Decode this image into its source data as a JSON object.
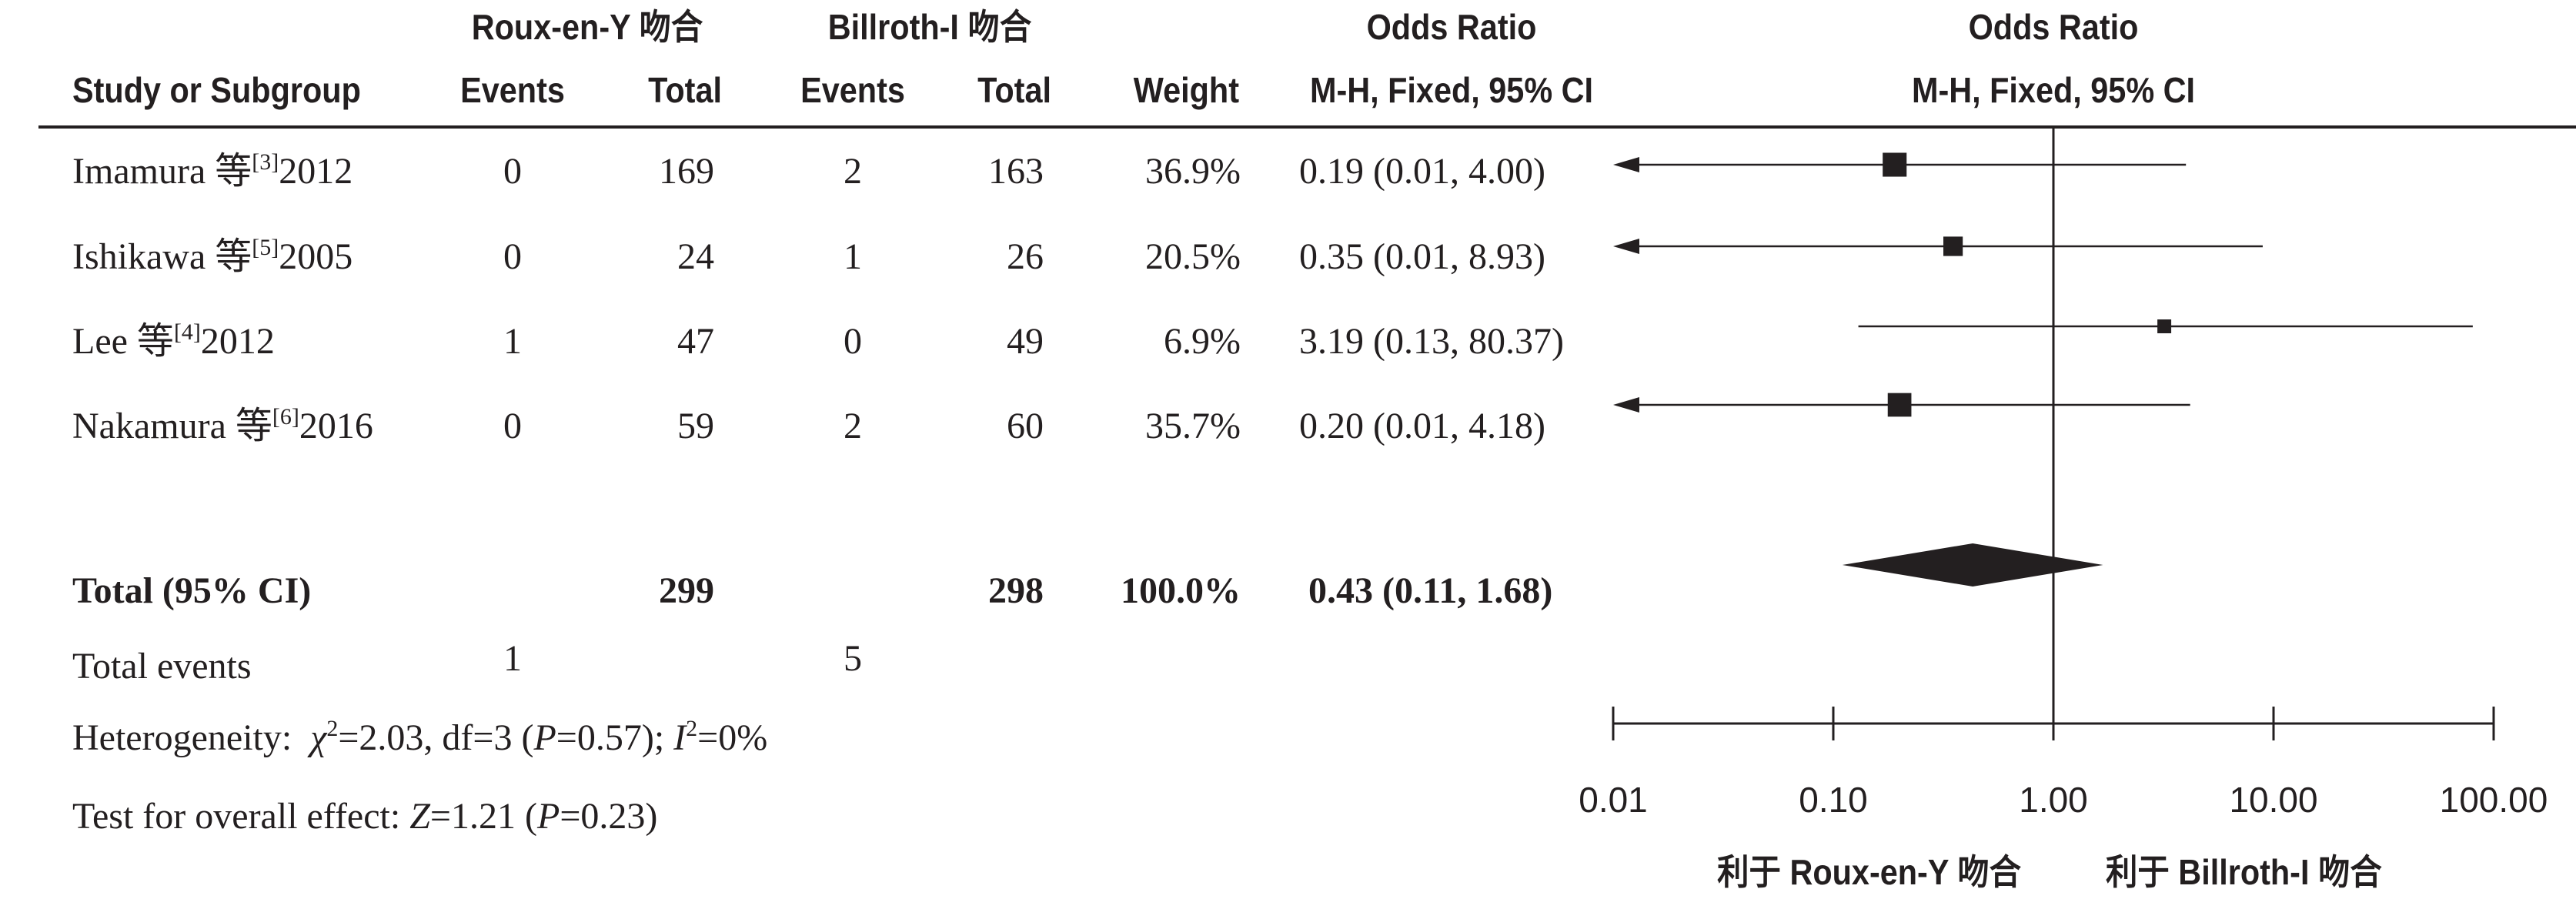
{
  "header": {
    "group1": "Roux-en-Y 吻合",
    "group2": "Billroth-I 吻合",
    "or_title": "Odds Ratio",
    "or_method": "M-H, Fixed, 95% CI",
    "plot_title": "Odds Ratio",
    "plot_method": "M-H, Fixed, 95% CI",
    "study": "Study or Subgroup",
    "events1": "Events",
    "total1": "Total",
    "events2": "Events",
    "total2": "Total",
    "weight": "Weight"
  },
  "rows": [
    {
      "name": "Imamura 等",
      "ref": "[3]",
      "year": "2012",
      "e1": "0",
      "t1": "169",
      "e2": "2",
      "t2": "163",
      "weight": "36.9%",
      "ci_text": "0.19 (0.01, 4.00)"
    },
    {
      "name": "Ishikawa 等",
      "ref": "[5]",
      "year": "2005",
      "e1": "0",
      "t1": "24",
      "e2": "1",
      "t2": "26",
      "weight": "20.5%",
      "ci_text": "0.35 (0.01, 8.93)"
    },
    {
      "name": "Lee 等",
      "ref": "[4]",
      "year": "2012",
      "e1": "1",
      "t1": "47",
      "e2": "0",
      "t2": "49",
      "weight": "6.9%",
      "ci_text": "3.19 (0.13, 80.37)"
    },
    {
      "name": "Nakamura 等",
      "ref": "[6]",
      "year": "2016",
      "e1": "0",
      "t1": "59",
      "e2": "2",
      "t2": "60",
      "weight": "35.7%",
      "ci_text": "0.20 (0.01, 4.18)"
    }
  ],
  "total": {
    "label": "Total (95% CI)",
    "t1": "299",
    "t2": "298",
    "weight": "100.0%",
    "ci_text": "0.43 (0.11, 1.68)"
  },
  "total_events": {
    "label": "Total events",
    "e1": "1",
    "e2": "5"
  },
  "heterogeneity": {
    "label": "Heterogeneity:",
    "chi": "χ",
    "chi_sup": "2",
    "chi_rest": "=2.03, df=3 (",
    "p": "P",
    "p_rest": "=0.57); ",
    "i": "I",
    "i_sup": "2",
    "i_rest": "=0%"
  },
  "overall": {
    "label": "Test for overall effect: ",
    "z": "Z",
    "z_rest": "=1.21 (",
    "p": "P",
    "p_rest": "=0.23)"
  },
  "axis": {
    "favours_left": "利于 Roux-en-Y 吻合",
    "favours_right": "利于 Billroth-I 吻合"
  },
  "chart_data": {
    "type": "scatter",
    "scale": "log",
    "xlim": [
      0.01,
      100
    ],
    "ticks": [
      "0.01",
      "0.10",
      "1.00",
      "10.00",
      "100.00"
    ],
    "tick_values": [
      0.01,
      0.1,
      1,
      10,
      100
    ],
    "reference_line": 1,
    "studies": [
      {
        "name": "Imamura 2012",
        "or": 0.19,
        "lower": 0.01,
        "upper": 4.0,
        "weight": 36.9
      },
      {
        "name": "Ishikawa 2005",
        "or": 0.35,
        "lower": 0.01,
        "upper": 8.93,
        "weight": 20.5
      },
      {
        "name": "Lee 2012",
        "or": 3.19,
        "lower": 0.13,
        "upper": 80.37,
        "weight": 6.9
      },
      {
        "name": "Nakamura 2016",
        "or": 0.2,
        "lower": 0.01,
        "upper": 4.18,
        "weight": 35.7
      }
    ],
    "pooled": {
      "or": 0.43,
      "lower": 0.11,
      "upper": 1.68
    }
  }
}
